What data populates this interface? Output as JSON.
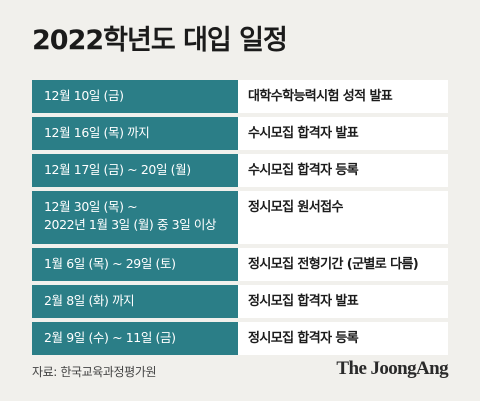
{
  "title": "2022학년도 대입 일정",
  "schedule": [
    {
      "date": [
        "12월 10일 (금)"
      ],
      "event": "대학수학능력시험 성적 발표"
    },
    {
      "date": [
        "12월 16일 (목) 까지"
      ],
      "event": "수시모집 합격자 발표"
    },
    {
      "date": [
        "12월 17일 (금) ~ 20일 (월)"
      ],
      "event": "수시모집 합격자 등록"
    },
    {
      "date": [
        "12월 30일 (목) ~",
        "2022년 1월 3일 (월) 중 3일 이상"
      ],
      "event": "정시모집 원서접수"
    },
    {
      "date": [
        "1월 6일 (목) ~ 29일 (토)"
      ],
      "event": "정시모집 전형기간 (군별로 다름)"
    },
    {
      "date": [
        "2월 8일 (화) 까지"
      ],
      "event": "정시모집 합격자 발표"
    },
    {
      "date": [
        "2월 9일 (수) ~ 11일 (금)"
      ],
      "event": "정시모집 합격자 등록"
    }
  ],
  "source": "자료: 한국교육과정평가원",
  "logo": "The JoongAng",
  "colors": {
    "background": "#f1f0ec",
    "date_cell": "#2b7e87",
    "event_cell": "#ffffff"
  }
}
